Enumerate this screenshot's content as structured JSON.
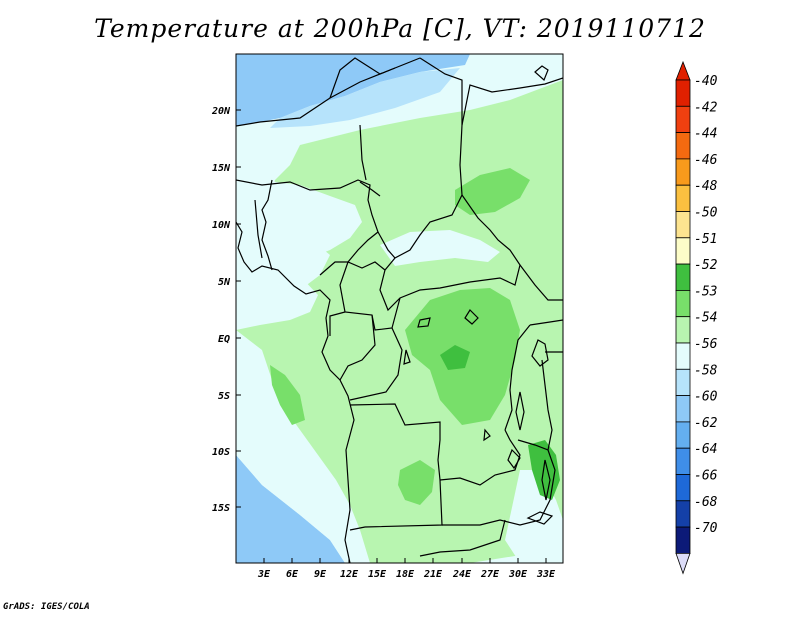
{
  "title": "Temperature at 200hPa [C], VT: 2019110712",
  "credit": "GrADS: IGES/COLA",
  "lat_labels": [
    "20N",
    "15N",
    "10N",
    "5N",
    "EQ",
    "5S",
    "10S",
    "15S"
  ],
  "lon_labels": [
    "3E",
    "6E",
    "9E",
    "12E",
    "15E",
    "18E",
    "21E",
    "24E",
    "27E",
    "30E",
    "33E"
  ],
  "colorbar": {
    "levels": [
      {
        "label": "-40",
        "color": "#e02000"
      },
      {
        "label": "-42",
        "color": "#f04010"
      },
      {
        "label": "-44",
        "color": "#f46a10"
      },
      {
        "label": "-46",
        "color": "#f89a1c"
      },
      {
        "label": "-48",
        "color": "#fbc040"
      },
      {
        "label": "-50",
        "color": "#fde490"
      },
      {
        "label": "-51",
        "color": "#fdfdc8"
      },
      {
        "label": "-52",
        "color": "#3fbf3f"
      },
      {
        "label": "-53",
        "color": "#78df6a"
      },
      {
        "label": "-54",
        "color": "#b8f5b0"
      },
      {
        "label": "-56",
        "color": "#e4fcfc"
      },
      {
        "label": "-58",
        "color": "#b6e3fb"
      },
      {
        "label": "-60",
        "color": "#8ec9f7"
      },
      {
        "label": "-62",
        "color": "#64aff0"
      },
      {
        "label": "-64",
        "color": "#3f8ee8"
      },
      {
        "label": "-66",
        "color": "#1e69d8"
      },
      {
        "label": "-68",
        "color": "#1440a8"
      },
      {
        "label": "-70",
        "color": "#0c1a78"
      }
    ],
    "top_color": "#e02000",
    "bottom_color": "#dcdcf8"
  },
  "colors": {
    "light_blue": "#e4fcfc",
    "blue": "#8ec9f7",
    "sky": "#b6e3fb",
    "light_green": "#b8f5b0",
    "green": "#78df6a",
    "dark_green": "#3fbf3f"
  }
}
